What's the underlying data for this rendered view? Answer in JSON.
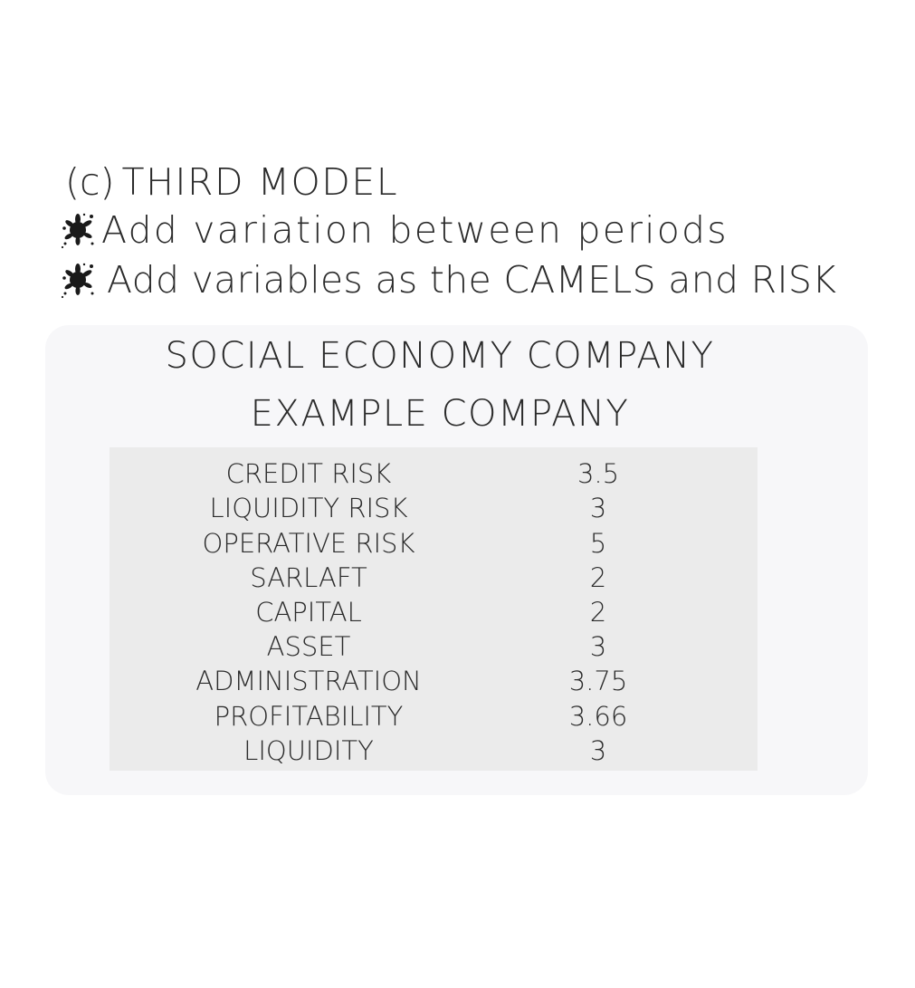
{
  "heading": {
    "prefix": "(c)",
    "text": "THIRD MODEL"
  },
  "bullets": [
    {
      "icon": "ink-splat-icon",
      "text": "Add variation between periods"
    },
    {
      "icon": "ink-splat-icon",
      "text": "Add variables as the CAMELS and RISK"
    }
  ],
  "panel": {
    "title": "SOCIAL ECONOMY COMPANY",
    "subtitle": "EXAMPLE COMPANY",
    "rows": [
      {
        "name": "CREDIT RISK",
        "value": "3.5"
      },
      {
        "name": "LIQUIDITY RISK",
        "value": "3"
      },
      {
        "name": "OPERATIVE RISK",
        "value": "5"
      },
      {
        "name": "SARLAFT",
        "value": "2"
      },
      {
        "name": "CAPITAL",
        "value": "2"
      },
      {
        "name": "ASSET",
        "value": "3"
      },
      {
        "name": "ADMINISTRATION",
        "value": "3.75"
      },
      {
        "name": "PROFITABILITY",
        "value": "3.66"
      },
      {
        "name": "LIQUIDITY",
        "value": "3"
      }
    ]
  }
}
